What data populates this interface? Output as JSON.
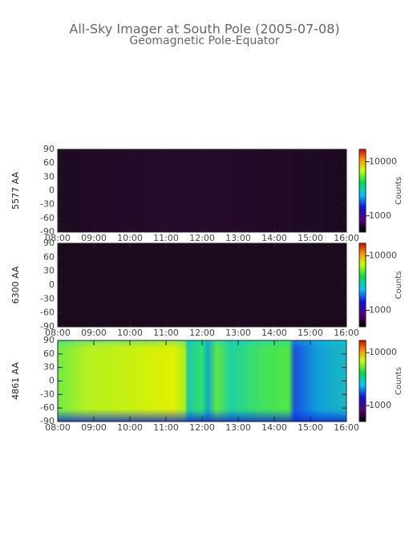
{
  "title": "All-Sky Imager at South Pole (2005-07-08)",
  "subtitle": "Geomagnetic Pole-Equator",
  "chart_data": [
    {
      "type": "heatmap",
      "ylabel": "5577 AA",
      "xlim": [
        8,
        16
      ],
      "xticks": [
        {
          "value": 8,
          "label": "08:00"
        },
        {
          "value": 9,
          "label": "09:00"
        },
        {
          "value": 10,
          "label": "10:00"
        },
        {
          "value": 11,
          "label": "11:00"
        },
        {
          "value": 12,
          "label": "12:00"
        },
        {
          "value": 13,
          "label": "13:00"
        },
        {
          "value": 14,
          "label": "14:00"
        },
        {
          "value": 15,
          "label": "15:00"
        },
        {
          "value": 16,
          "label": "16:00"
        }
      ],
      "ylim": [
        -90,
        90
      ],
      "yticks": [
        -90,
        -60,
        -30,
        0,
        30,
        60,
        90
      ],
      "colorbar": {
        "label": "Counts",
        "log": true,
        "clim": [
          500,
          17000
        ],
        "ticks": [
          1000,
          10000
        ]
      }
    },
    {
      "type": "heatmap",
      "ylabel": "6300 AA",
      "xlim": [
        8,
        16
      ],
      "xticks": [
        {
          "value": 8,
          "label": "08:00"
        },
        {
          "value": 9,
          "label": "09:00"
        },
        {
          "value": 10,
          "label": "10:00"
        },
        {
          "value": 11,
          "label": "11:00"
        },
        {
          "value": 12,
          "label": "12:00"
        },
        {
          "value": 13,
          "label": "13:00"
        },
        {
          "value": 14,
          "label": "14:00"
        },
        {
          "value": 15,
          "label": "15:00"
        },
        {
          "value": 16,
          "label": "16:00"
        }
      ],
      "ylim": [
        -90,
        90
      ],
      "yticks": [
        -90,
        -60,
        -30,
        0,
        30,
        60,
        90
      ],
      "colorbar": {
        "label": "Counts",
        "log": true,
        "clim": [
          500,
          17000
        ],
        "ticks": [
          1000,
          10000
        ]
      }
    },
    {
      "type": "heatmap",
      "ylabel": "4861 AA",
      "xlim": [
        8,
        16
      ],
      "xticks": [
        {
          "value": 8,
          "label": "08:00"
        },
        {
          "value": 9,
          "label": "09:00"
        },
        {
          "value": 10,
          "label": "10:00"
        },
        {
          "value": 11,
          "label": "11:00"
        },
        {
          "value": 12,
          "label": "12:00"
        },
        {
          "value": 13,
          "label": "13:00"
        },
        {
          "value": 14,
          "label": "14:00"
        },
        {
          "value": 15,
          "label": "15:00"
        },
        {
          "value": 16,
          "label": "16:00"
        }
      ],
      "ylim": [
        -90,
        90
      ],
      "yticks": [
        -90,
        -60,
        -30,
        0,
        30,
        60,
        90
      ],
      "colorbar": {
        "label": "Counts",
        "log": true,
        "clim": [
          500,
          17000
        ],
        "ticks": [
          1000,
          10000
        ]
      }
    }
  ]
}
